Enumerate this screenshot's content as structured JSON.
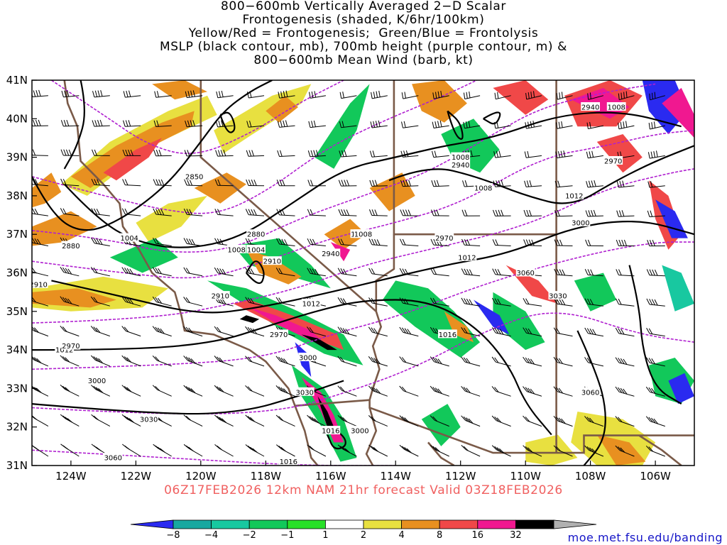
{
  "title": {
    "lines": [
      "800−600mb Vertically Averaged 2−D Scalar",
      "Frontogenesis (shaded, K/6hr/100km)",
      "Yellow/Red = Frontogenesis;  Green/Blue = Frontolysis",
      "MSLP (black contour, mb), 700mb height (purple contour, m) &",
      "800−600mb Mean Wind (barb, kt)"
    ]
  },
  "map": {
    "lon_range": [
      -125.2,
      -104.8
    ],
    "lat_range": [
      31,
      41
    ],
    "lat_labels": [
      "41N",
      "40N",
      "39N",
      "38N",
      "37N",
      "36N",
      "35N",
      "34N",
      "33N",
      "32N",
      "31N"
    ],
    "lon_labels": [
      "124W",
      "122W",
      "120W",
      "118W",
      "116W",
      "114W",
      "112W",
      "110W",
      "108W",
      "106W"
    ],
    "mslp_labels": [
      "1004",
      "1008",
      "1004",
      "1008",
      "1008",
      "1012",
      "1012",
      "1012",
      "1016",
      "1016",
      "1008",
      "1012",
      "1008",
      "1008",
      "1016"
    ],
    "height_labels": [
      "2850",
      "2880",
      "2880",
      "2910",
      "2910",
      "2910",
      "2940",
      "2940",
      "2940",
      "2970",
      "2970",
      "2970",
      "2970",
      "3000",
      "3000",
      "3000",
      "3000",
      "3030",
      "3030",
      "3030",
      "3060",
      "3060",
      "3060"
    ],
    "colors": {
      "blue": "#2a2af0",
      "teal": "#18c8a0",
      "green": "#12c85a",
      "light_green": "#28e028",
      "yellow": "#e8e040",
      "orange": "#e89020",
      "red": "#f04848",
      "magenta": "#f01890",
      "black": "#000000",
      "mslp_contour": "#000000",
      "height_contour": "#b020d0",
      "borders": "#7a5a48"
    }
  },
  "valid_line": "06Z17FEB2026 12km NAM 21hr forecast Valid 03Z18FEB2026",
  "colorbar": {
    "labels": [
      "−8",
      "−4",
      "−2",
      "−1",
      "1",
      "2",
      "4",
      "8",
      "16",
      "32"
    ],
    "colors": [
      "#2a2af0",
      "#18a8a0",
      "#18c8a0",
      "#12c85a",
      "#28e028",
      "#ffffff",
      "#e8e040",
      "#e89020",
      "#f04848",
      "#f01890",
      "#000000",
      "#b0b0b0"
    ]
  },
  "source": "moe.met.fsu.edu/banding"
}
